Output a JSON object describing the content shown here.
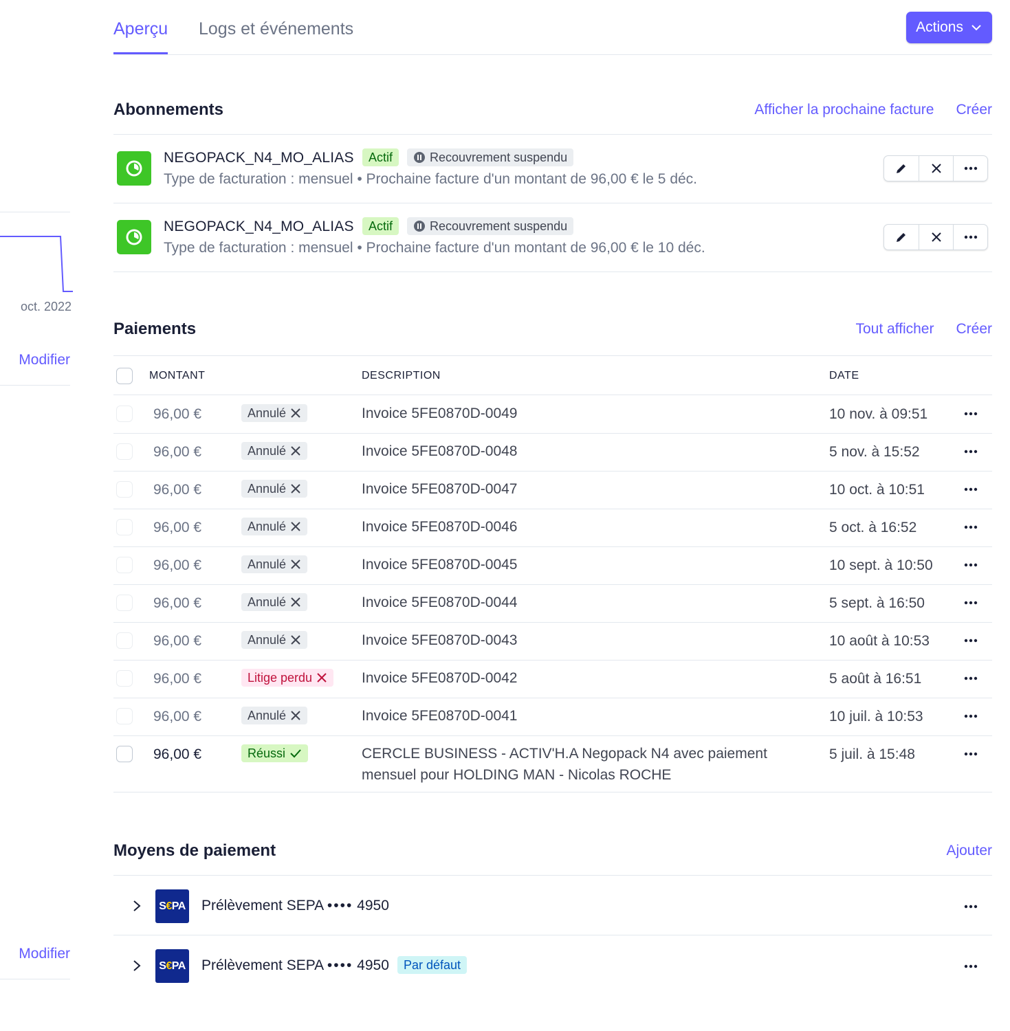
{
  "sidebar": {
    "axis_label": "oct. 2022",
    "modify_label_1": "Modifier",
    "modify_label_2": "Modifier"
  },
  "tabs": [
    {
      "label": "Aperçu",
      "active": true
    },
    {
      "label": "Logs et événements",
      "active": false
    }
  ],
  "actions_label": "Actions",
  "subscriptions": {
    "title": "Abonnements",
    "preview_link": "Afficher la prochaine facture",
    "create_link": "Créer",
    "items": [
      {
        "name": "NEGOPACK_N4_MO_ALIAS",
        "status": "Actif",
        "collection": "Recouvrement suspendu",
        "meta": "Type de facturation : mensuel • Prochaine facture d'un montant de 96,00 € le 5 déc."
      },
      {
        "name": "NEGOPACK_N4_MO_ALIAS",
        "status": "Actif",
        "collection": "Recouvrement suspendu",
        "meta": "Type de facturation : mensuel • Prochaine facture d'un montant de 96,00 € le 10 déc."
      }
    ]
  },
  "payments": {
    "title": "Paiements",
    "view_all_link": "Tout afficher",
    "create_link": "Créer",
    "columns": {
      "amount": "MONTANT",
      "description": "DESCRIPTION",
      "date": "DATE"
    },
    "rows": [
      {
        "amount": "96,00 €",
        "status": "Annulé",
        "status_kind": "canceled",
        "description": "Invoice 5FE0870D-0049",
        "date": "10 nov. à 09:51"
      },
      {
        "amount": "96,00 €",
        "status": "Annulé",
        "status_kind": "canceled",
        "description": "Invoice 5FE0870D-0048",
        "date": "5 nov. à 15:52"
      },
      {
        "amount": "96,00 €",
        "status": "Annulé",
        "status_kind": "canceled",
        "description": "Invoice 5FE0870D-0047",
        "date": "10 oct. à 10:51"
      },
      {
        "amount": "96,00 €",
        "status": "Annulé",
        "status_kind": "canceled",
        "description": "Invoice 5FE0870D-0046",
        "date": "5 oct. à 16:52"
      },
      {
        "amount": "96,00 €",
        "status": "Annulé",
        "status_kind": "canceled",
        "description": "Invoice 5FE0870D-0045",
        "date": "10 sept. à 10:50"
      },
      {
        "amount": "96,00 €",
        "status": "Annulé",
        "status_kind": "canceled",
        "description": "Invoice 5FE0870D-0044",
        "date": "5 sept. à 16:50"
      },
      {
        "amount": "96,00 €",
        "status": "Annulé",
        "status_kind": "canceled",
        "description": "Invoice 5FE0870D-0043",
        "date": "10 août à 10:53"
      },
      {
        "amount": "96,00 €",
        "status": "Litige perdu",
        "status_kind": "dispute",
        "description": "Invoice 5FE0870D-0042",
        "date": "5 août à 16:51"
      },
      {
        "amount": "96,00 €",
        "status": "Annulé",
        "status_kind": "canceled",
        "description": "Invoice 5FE0870D-0041",
        "date": "10 juil. à 10:53"
      },
      {
        "amount": "96,00 €",
        "status": "Réussi",
        "status_kind": "succeeded",
        "description": "CERCLE BUSINESS - ACTIV'H.A Negopack N4 avec paiement mensuel pour HOLDING MAN - Nicolas ROCHE",
        "date": "5 juil. à 15:48"
      }
    ]
  },
  "payment_methods": {
    "title": "Moyens de paiement",
    "add_link": "Ajouter",
    "items": [
      {
        "logo_s": "S",
        "logo_e": "€",
        "logo_pa": "PA",
        "label": "Prélèvement SEPA",
        "dots": "••••",
        "last4": "4950",
        "badge": ""
      },
      {
        "logo_s": "S",
        "logo_e": "€",
        "logo_pa": "PA",
        "label": "Prélèvement SEPA",
        "dots": "••••",
        "last4": "4950",
        "badge": "Par défaut"
      }
    ]
  },
  "colors": {
    "accent": "#635bff",
    "active_green": "#3ec627",
    "sepa_blue": "#10298e"
  }
}
